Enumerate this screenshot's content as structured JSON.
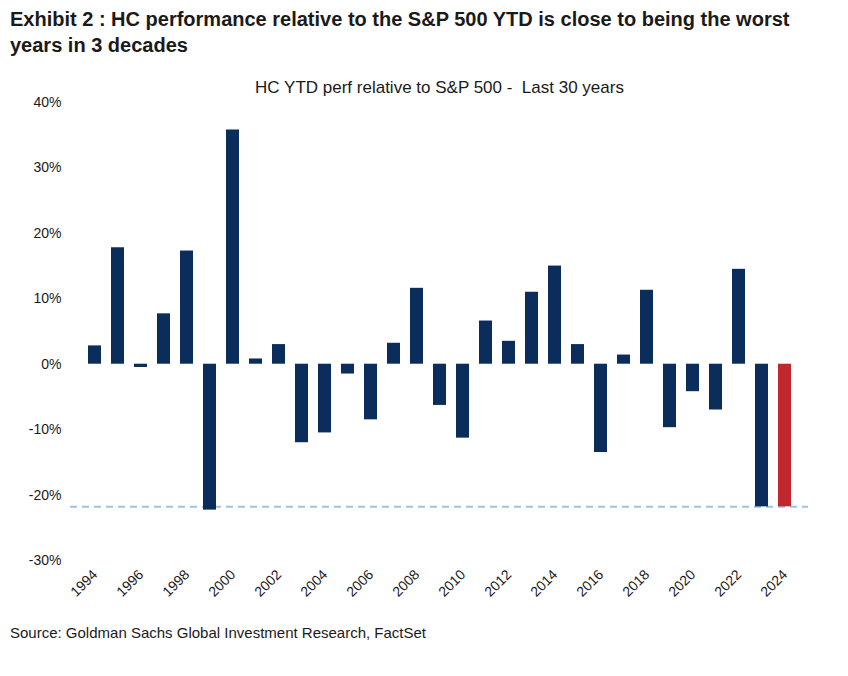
{
  "chart_data": {
    "type": "bar",
    "title": "Exhibit 2 : HC performance relative to the S&P 500 YTD is close to being the worst years in 3 decades",
    "subtitle": "HC YTD perf relative to S&P 500 -  Last 30 years",
    "caption": "Source: Goldman Sachs Global Investment Research, FactSet",
    "categories": [
      "1994",
      null,
      "1996",
      null,
      "1998",
      null,
      "2000",
      null,
      "2002",
      null,
      "2004",
      null,
      "2006",
      null,
      "2008",
      null,
      "2010",
      null,
      "2012",
      null,
      "2014",
      null,
      "2016",
      null,
      "2018",
      null,
      "2020",
      null,
      "2022",
      null,
      "2024"
    ],
    "values": [
      2.8,
      17.8,
      -0.5,
      7.7,
      17.3,
      -22.3,
      35.8,
      0.8,
      3.0,
      -12.0,
      -10.5,
      -1.5,
      -8.5,
      3.2,
      11.6,
      -6.3,
      -11.3,
      6.6,
      3.5,
      11.0,
      15.0,
      3.0,
      -13.5,
      1.4,
      11.3,
      -9.7,
      -4.2,
      -7.0,
      14.5,
      -21.8,
      -21.8
    ],
    "colors": [
      "#0b2d5b",
      "#0b2d5b",
      "#0b2d5b",
      "#0b2d5b",
      "#0b2d5b",
      "#0b2d5b",
      "#0b2d5b",
      "#0b2d5b",
      "#0b2d5b",
      "#0b2d5b",
      "#0b2d5b",
      "#0b2d5b",
      "#0b2d5b",
      "#0b2d5b",
      "#0b2d5b",
      "#0b2d5b",
      "#0b2d5b",
      "#0b2d5b",
      "#0b2d5b",
      "#0b2d5b",
      "#0b2d5b",
      "#0b2d5b",
      "#0b2d5b",
      "#0b2d5b",
      "#0b2d5b",
      "#0b2d5b",
      "#0b2d5b",
      "#0b2d5b",
      "#0b2d5b",
      "#0b2d5b",
      "#c0282d"
    ],
    "reference_value": -21.8,
    "ylim": [
      -30,
      40
    ],
    "yticks": [
      {
        "value": -30,
        "label": "-30%"
      },
      {
        "value": -20,
        "label": "-20%"
      },
      {
        "value": -10,
        "label": "-10%"
      },
      {
        "value": 0,
        "label": "0%"
      },
      {
        "value": 10,
        "label": "10%"
      },
      {
        "value": 20,
        "label": "20%"
      },
      {
        "value": 30,
        "label": "30%"
      },
      {
        "value": 40,
        "label": "40%"
      }
    ],
    "grid": false
  }
}
